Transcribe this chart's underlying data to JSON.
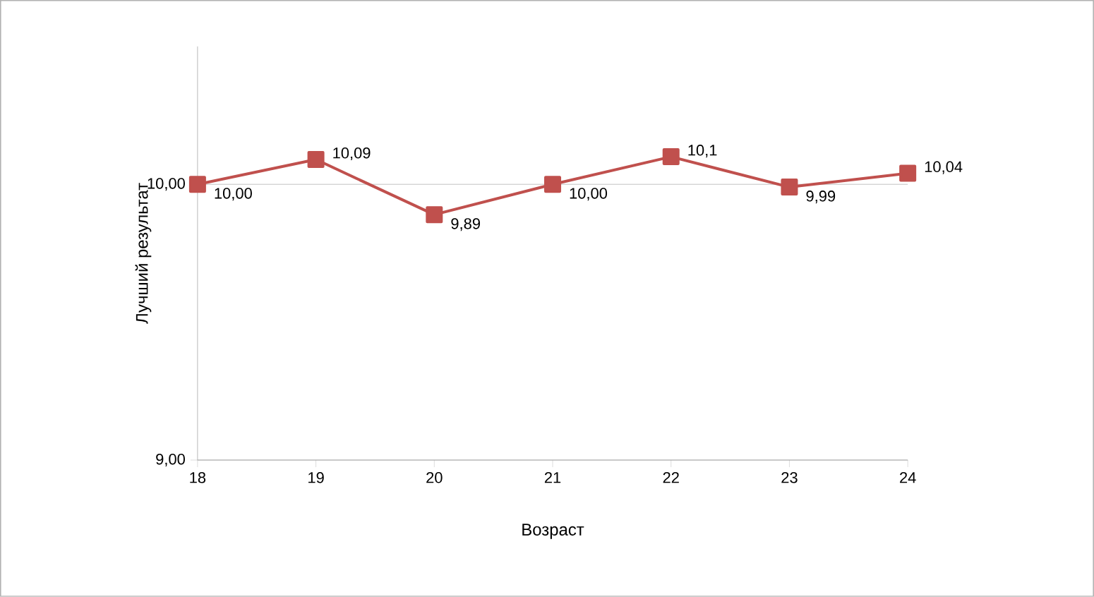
{
  "chart_data": {
    "type": "line",
    "xlabel": "Возраст",
    "ylabel": "Лучший результат",
    "categories": [
      "18",
      "19",
      "20",
      "21",
      "22",
      "23",
      "24"
    ],
    "series": [
      {
        "color": "#c0504d",
        "values": [
          10.0,
          10.09,
          9.89,
          10.0,
          10.1,
          9.99,
          10.04
        ],
        "value_labels": [
          "10,00",
          "10,09",
          "9,89",
          "10,00",
          "10,1",
          "9,99",
          "10,04"
        ]
      }
    ],
    "ylim": [
      9,
      10.5
    ],
    "yticks": [
      {
        "value": 9,
        "label": "9,00"
      },
      {
        "value": 10,
        "label": "10,00"
      }
    ],
    "grid": "y",
    "marker": "square",
    "line_style": "solid"
  }
}
